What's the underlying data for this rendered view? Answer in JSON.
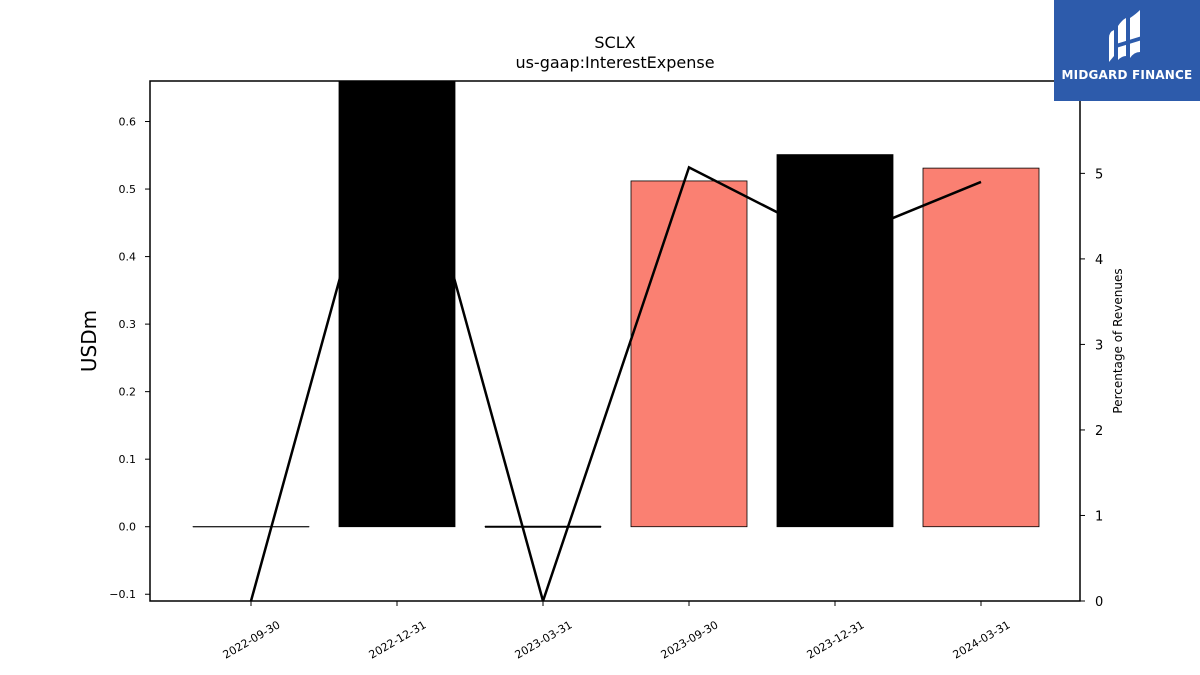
{
  "chart_data": {
    "type": "bar",
    "title": "SCLX",
    "subtitle": "us-gaap:InterestExpense",
    "ylabel": "USDm",
    "y2label": "Percentage of Revenues",
    "categories": [
      "2022-09-30",
      "2022-12-31",
      "2023-03-31",
      "2023-09-30",
      "2023-12-31",
      "2024-03-31"
    ],
    "values": [
      0.0,
      0.66,
      0.0,
      0.512,
      0.551,
      0.531
    ],
    "bar_colors": [
      "#000000",
      "#000000",
      "#000000",
      "#fa8072",
      "#000000",
      "#fa8072"
    ],
    "line_series": {
      "axis": "right",
      "values": [
        0.0,
        6.2,
        0.0,
        5.07,
        4.2,
        4.9
      ]
    },
    "ylim": [
      -0.11,
      0.66
    ],
    "y2lim": [
      0,
      6.08
    ],
    "yticks": [
      -0.1,
      0.0,
      0.1,
      0.2,
      0.3,
      0.4,
      0.5,
      0.6
    ],
    "ytick_labels": [
      "−0.1",
      "0.0",
      "0.1",
      "0.2",
      "0.3",
      "0.4",
      "0.5",
      "0.6"
    ],
    "y2ticks": [
      0,
      1,
      2,
      3,
      4,
      5
    ],
    "y2tick_labels": [
      "0",
      "1",
      "2",
      "3",
      "4",
      "5"
    ],
    "grid": false,
    "legend": "none"
  },
  "logo": {
    "text": "MIDGARD FINANCE",
    "background": "#2d5bab"
  }
}
